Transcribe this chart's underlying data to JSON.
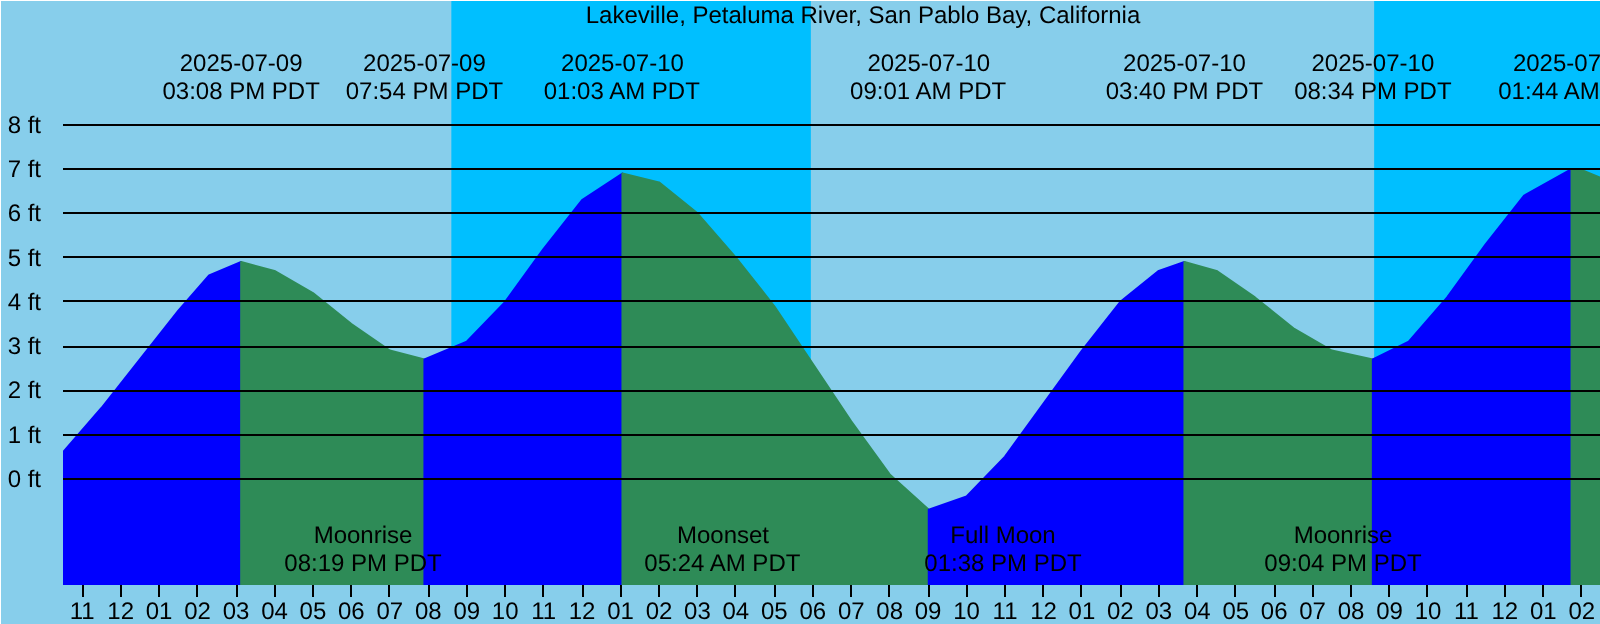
{
  "chart_data": {
    "type": "area",
    "title": "Lakeville, Petaluma River, San Pablo Bay, California",
    "xlim": [
      "2025-07-09T10:30",
      "2025-07-11T02:30"
    ],
    "ylim": [
      -2.4,
      10.8
    ],
    "xticks": [
      {
        "value": "2025-07-09T11:00",
        "label": "11"
      },
      {
        "value": "2025-07-09T12:00",
        "label": "12"
      },
      {
        "value": "2025-07-09T13:00",
        "label": "01"
      },
      {
        "value": "2025-07-09T14:00",
        "label": "02"
      },
      {
        "value": "2025-07-09T15:00",
        "label": "03"
      },
      {
        "value": "2025-07-09T16:00",
        "label": "04"
      },
      {
        "value": "2025-07-09T17:00",
        "label": "05"
      },
      {
        "value": "2025-07-09T18:00",
        "label": "06"
      },
      {
        "value": "2025-07-09T19:00",
        "label": "07"
      },
      {
        "value": "2025-07-09T20:00",
        "label": "08"
      },
      {
        "value": "2025-07-09T21:00",
        "label": "09"
      },
      {
        "value": "2025-07-09T22:00",
        "label": "10"
      },
      {
        "value": "2025-07-09T23:00",
        "label": "11"
      },
      {
        "value": "2025-07-10T00:00",
        "label": "12"
      },
      {
        "value": "2025-07-10T01:00",
        "label": "01"
      },
      {
        "value": "2025-07-10T02:00",
        "label": "02"
      },
      {
        "value": "2025-07-10T03:00",
        "label": "03"
      },
      {
        "value": "2025-07-10T04:00",
        "label": "04"
      },
      {
        "value": "2025-07-10T05:00",
        "label": "05"
      },
      {
        "value": "2025-07-10T06:00",
        "label": "06"
      },
      {
        "value": "2025-07-10T07:00",
        "label": "07"
      },
      {
        "value": "2025-07-10T08:00",
        "label": "08"
      },
      {
        "value": "2025-07-10T09:00",
        "label": "09"
      },
      {
        "value": "2025-07-10T10:00",
        "label": "10"
      },
      {
        "value": "2025-07-10T11:00",
        "label": "11"
      },
      {
        "value": "2025-07-10T12:00",
        "label": "12"
      },
      {
        "value": "2025-07-10T13:00",
        "label": "01"
      },
      {
        "value": "2025-07-10T14:00",
        "label": "02"
      },
      {
        "value": "2025-07-10T15:00",
        "label": "03"
      },
      {
        "value": "2025-07-10T16:00",
        "label": "04"
      },
      {
        "value": "2025-07-10T17:00",
        "label": "05"
      },
      {
        "value": "2025-07-10T18:00",
        "label": "06"
      },
      {
        "value": "2025-07-10T19:00",
        "label": "07"
      },
      {
        "value": "2025-07-10T20:00",
        "label": "08"
      },
      {
        "value": "2025-07-10T21:00",
        "label": "09"
      },
      {
        "value": "2025-07-10T22:00",
        "label": "10"
      },
      {
        "value": "2025-07-10T23:00",
        "label": "11"
      },
      {
        "value": "2025-07-11T00:00",
        "label": "12"
      },
      {
        "value": "2025-07-11T01:00",
        "label": "01"
      },
      {
        "value": "2025-07-11T02:00",
        "label": "02"
      }
    ],
    "yticks": [
      {
        "value": 0,
        "label": "0 ft"
      },
      {
        "value": 1,
        "label": "1 ft"
      },
      {
        "value": 2,
        "label": "2 ft"
      },
      {
        "value": 3,
        "label": "3 ft"
      },
      {
        "value": 4,
        "label": "4 ft"
      },
      {
        "value": 5,
        "label": "5 ft"
      },
      {
        "value": 6,
        "label": "6 ft"
      },
      {
        "value": 7,
        "label": "7 ft"
      },
      {
        "value": 8,
        "label": "8 ft"
      }
    ],
    "grid": "y",
    "series": [
      {
        "color": "#0000ff",
        "x": [
          "2025-07-09T10:30",
          "2025-07-09T11:30",
          "2025-07-09T12:30",
          "2025-07-09T13:30",
          "2025-07-09T14:18",
          "2025-07-09T15:08"
        ],
        "values": [
          0.6,
          1.6,
          2.7,
          3.8,
          4.6,
          4.9
        ]
      },
      {
        "color": "#2e8b57",
        "x": [
          "2025-07-09T15:08",
          "2025-07-09T16:00",
          "2025-07-09T17:00",
          "2025-07-09T18:00",
          "2025-07-09T19:00",
          "2025-07-09T19:54"
        ],
        "values": [
          4.9,
          4.7,
          4.2,
          3.5,
          2.9,
          2.7
        ]
      },
      {
        "color": "#0000ff",
        "x": [
          "2025-07-09T19:54",
          "2025-07-09T21:00",
          "2025-07-09T22:00",
          "2025-07-09T23:00",
          "2025-07-10T00:00",
          "2025-07-10T01:03"
        ],
        "values": [
          2.7,
          3.1,
          4.0,
          5.2,
          6.3,
          6.9
        ]
      },
      {
        "color": "#2e8b57",
        "x": [
          "2025-07-10T01:03",
          "2025-07-10T02:00",
          "2025-07-10T03:00",
          "2025-07-10T04:00",
          "2025-07-10T05:00",
          "2025-07-10T06:00",
          "2025-07-10T07:00",
          "2025-07-10T08:00",
          "2025-07-10T09:01"
        ],
        "values": [
          6.9,
          6.7,
          6.0,
          5.0,
          3.9,
          2.6,
          1.3,
          0.1,
          -0.7
        ]
      },
      {
        "color": "#0000ff",
        "x": [
          "2025-07-10T09:01",
          "2025-07-10T10:00",
          "2025-07-10T11:00",
          "2025-07-10T12:00",
          "2025-07-10T13:00",
          "2025-07-10T14:00",
          "2025-07-10T15:00",
          "2025-07-10T15:40"
        ],
        "values": [
          -0.7,
          -0.4,
          0.5,
          1.7,
          2.9,
          4.0,
          4.7,
          4.9
        ]
      },
      {
        "color": "#2e8b57",
        "x": [
          "2025-07-10T15:40",
          "2025-07-10T16:30",
          "2025-07-10T17:30",
          "2025-07-10T18:30",
          "2025-07-10T19:30",
          "2025-07-10T20:34"
        ],
        "values": [
          4.9,
          4.7,
          4.1,
          3.4,
          2.9,
          2.7
        ]
      },
      {
        "color": "#0000ff",
        "x": [
          "2025-07-10T20:34",
          "2025-07-10T21:30",
          "2025-07-10T22:30",
          "2025-07-10T23:30",
          "2025-07-11T00:30",
          "2025-07-11T01:44"
        ],
        "values": [
          2.7,
          3.1,
          4.1,
          5.3,
          6.4,
          7.0
        ]
      },
      {
        "color": "#2e8b57",
        "x": [
          "2025-07-11T01:44",
          "2025-07-11T02:05",
          "2025-07-11T02:30"
        ],
        "values": [
          7.0,
          6.95,
          6.8
        ]
      }
    ],
    "bands": [
      {
        "axis": "x",
        "from": "2025-07-09T20:36",
        "to": "2025-07-10T05:57",
        "color": "#00bfff"
      },
      {
        "axis": "x",
        "from": "2025-07-10T20:36",
        "to": "2025-07-11T02:30",
        "color": "#00bfff"
      }
    ],
    "annotations": [
      "2025-07-09\n03:08 PM PDT",
      "2025-07-09\n07:54 PM PDT",
      "2025-07-10\n01:03 AM PDT",
      "2025-07-10\n09:01 AM PDT",
      "2025-07-10\n03:40 PM PDT",
      "2025-07-10\n08:34 PM PDT",
      "2025-07\n01:44 AM",
      "Moonrise\n08:19 PM PDT",
      "Moonset\n05:24 AM PDT",
      "Full Moon\n01:38 PM PDT",
      "Moonrise\n09:04 PM PDT"
    ]
  }
}
